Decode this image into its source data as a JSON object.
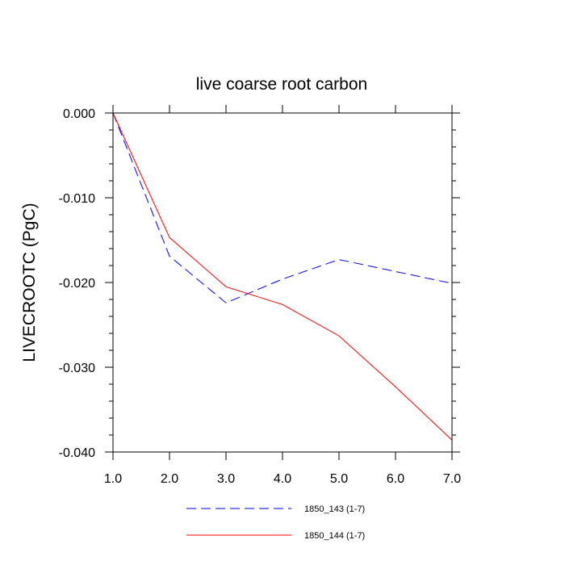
{
  "chart_data": {
    "type": "line",
    "title": "live coarse root carbon",
    "xlabel": "",
    "ylabel": "LIVECROOTC  (PgC)",
    "x": [
      1,
      2,
      3,
      4,
      5,
      6,
      7
    ],
    "xlim": [
      1,
      7
    ],
    "ylim": [
      -0.04,
      0.0
    ],
    "xticks": [
      1,
      2,
      3,
      4,
      5,
      6,
      7
    ],
    "xtick_labels": [
      "1.0",
      "2.0",
      "3.0",
      "4.0",
      "5.0",
      "6.0",
      "7.0"
    ],
    "yticks": [
      0.0,
      -0.01,
      -0.02,
      -0.03,
      -0.04
    ],
    "ytick_labels": [
      "0.000",
      "-0.010",
      "-0.020",
      "-0.030",
      "-0.040"
    ],
    "grid": false,
    "legend_position": "bottom",
    "series": [
      {
        "name": "1850_143 (1-7)",
        "color": "#0000ff",
        "style": "dashed",
        "values": [
          0.0,
          -0.0169,
          -0.0224,
          -0.0196,
          -0.0173,
          -0.0187,
          -0.0201
        ]
      },
      {
        "name": "1850_144 (1-7)",
        "color": "#ff0000",
        "style": "solid",
        "values": [
          0.0,
          -0.0147,
          -0.0205,
          -0.0226,
          -0.0263,
          -0.0323,
          -0.0386
        ]
      }
    ]
  }
}
